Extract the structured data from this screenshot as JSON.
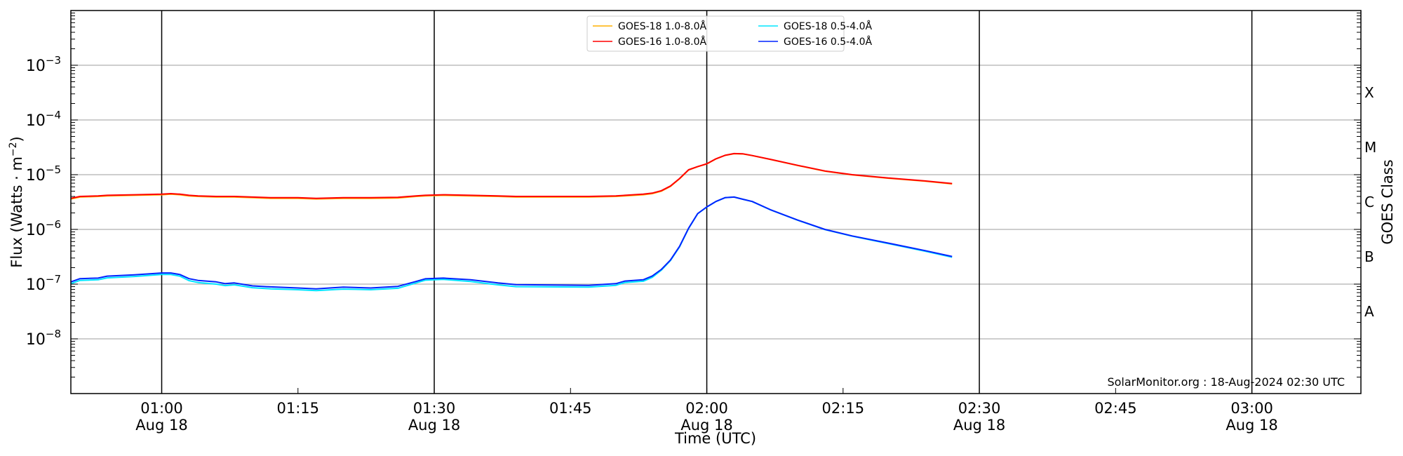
{
  "chart_data": {
    "type": "line",
    "title": "",
    "xlabel": "Time (UTC)",
    "ylabel": "Flux (Watts · m⁻²)",
    "y2label": "GOES Class",
    "yscale": "log",
    "ylim": [
      1e-09,
      0.01
    ],
    "xlim": [
      "00:50",
      "03:12"
    ],
    "grid": true,
    "legend_position": "top-center",
    "x_ticks": [
      {
        "time": "01:00",
        "label": "01:00",
        "sub": "Aug 18",
        "major": true
      },
      {
        "time": "01:15",
        "label": "01:15",
        "sub": "",
        "major": false
      },
      {
        "time": "01:30",
        "label": "01:30",
        "sub": "Aug 18",
        "major": true
      },
      {
        "time": "01:45",
        "label": "01:45",
        "sub": "",
        "major": false
      },
      {
        "time": "02:00",
        "label": "02:00",
        "sub": "Aug 18",
        "major": true
      },
      {
        "time": "02:15",
        "label": "02:15",
        "sub": "",
        "major": false
      },
      {
        "time": "02:30",
        "label": "02:30",
        "sub": "Aug 18",
        "major": true
      },
      {
        "time": "02:45",
        "label": "02:45",
        "sub": "",
        "major": false
      },
      {
        "time": "03:00",
        "label": "03:00",
        "sub": "Aug 18",
        "major": true
      }
    ],
    "y_ticks": [
      {
        "exp": -3,
        "base": "10",
        "sup": "−3"
      },
      {
        "exp": -4,
        "base": "10",
        "sup": "−4"
      },
      {
        "exp": -5,
        "base": "10",
        "sup": "−5"
      },
      {
        "exp": -6,
        "base": "10",
        "sup": "−6"
      },
      {
        "exp": -7,
        "base": "10",
        "sup": "−7"
      },
      {
        "exp": -8,
        "base": "10",
        "sup": "−8"
      }
    ],
    "class_labels": [
      {
        "label": "X",
        "exp": -3.5
      },
      {
        "label": "M",
        "exp": -4.5
      },
      {
        "label": "C",
        "exp": -5.5
      },
      {
        "label": "B",
        "exp": -6.5
      },
      {
        "label": "A",
        "exp": -7.5
      }
    ],
    "x": [
      "00:50",
      "00:51",
      "00:53",
      "00:54",
      "00:57",
      "01:00",
      "01:01",
      "01:02",
      "01:03",
      "01:04",
      "01:06",
      "01:07",
      "01:08",
      "01:10",
      "01:12",
      "01:15",
      "01:17",
      "01:20",
      "01:23",
      "01:26",
      "01:28",
      "01:29",
      "01:31",
      "01:34",
      "01:37",
      "01:39",
      "01:47",
      "01:50",
      "01:51",
      "01:53",
      "01:54",
      "01:55",
      "01:56",
      "01:57",
      "01:58",
      "01:59",
      "02:00",
      "02:01",
      "02:02",
      "02:03",
      "02:04",
      "02:05",
      "02:07",
      "02:10",
      "02:13",
      "02:16",
      "02:20",
      "02:24",
      "02:27"
    ],
    "series": [
      {
        "name": "GOES-18 1.0-8.0Å",
        "color": "#ffb000",
        "values": [
          3.6e-06,
          3.9e-06,
          4e-06,
          4.1e-06,
          4.2e-06,
          4.3e-06,
          4.4e-06,
          4.3e-06,
          4.1e-06,
          4e-06,
          3.9e-06,
          3.9e-06,
          3.9e-06,
          3.8e-06,
          3.7e-06,
          3.7e-06,
          3.6e-06,
          3.7e-06,
          3.7e-06,
          3.75e-06,
          4e-06,
          4.1e-06,
          4.2e-06,
          4.1e-06,
          4e-06,
          3.9e-06,
          3.9e-06,
          4e-06,
          4.1e-06,
          4.3e-06,
          4.5e-06,
          5e-06,
          6.1e-06,
          8.4e-06,
          1.22e-05,
          1.4e-05,
          1.57e-05,
          1.94e-05,
          2.25e-05,
          2.42e-05,
          2.39e-05,
          2.23e-05,
          1.9e-05,
          1.47e-05,
          1.16e-05,
          9.9e-06,
          8.6e-06,
          7.6e-06,
          6.8e-06
        ]
      },
      {
        "name": "GOES-16 1.0-8.0Å",
        "color": "#ff0000",
        "values": [
          3.7e-06,
          4e-06,
          4.1e-06,
          4.2e-06,
          4.3e-06,
          4.4e-06,
          4.5e-06,
          4.4e-06,
          4.2e-06,
          4.1e-06,
          4e-06,
          4e-06,
          4e-06,
          3.9e-06,
          3.8e-06,
          3.8e-06,
          3.7e-06,
          3.8e-06,
          3.8e-06,
          3.85e-06,
          4.1e-06,
          4.2e-06,
          4.3e-06,
          4.2e-06,
          4.1e-06,
          4e-06,
          4e-06,
          4.1e-06,
          4.2e-06,
          4.4e-06,
          4.6e-06,
          5.1e-06,
          6.2e-06,
          8.5e-06,
          1.23e-05,
          1.41e-05,
          1.58e-05,
          1.95e-05,
          2.26e-05,
          2.43e-05,
          2.4e-05,
          2.24e-05,
          1.91e-05,
          1.48e-05,
          1.17e-05,
          1e-05,
          8.7e-06,
          7.7e-06,
          6.9e-06
        ]
      },
      {
        "name": "GOES-18 0.5-4.0Å",
        "color": "#00e5ff",
        "values": [
          1.02e-07,
          1.17e-07,
          1.2e-07,
          1.3e-07,
          1.38e-07,
          1.5e-07,
          1.5e-07,
          1.4e-07,
          1.16e-07,
          1.07e-07,
          1e-07,
          9.4e-08,
          9.7e-08,
          8.6e-08,
          8.2e-08,
          7.9e-08,
          7.6e-08,
          8.1e-08,
          7.9e-08,
          8.4e-08,
          1.05e-07,
          1.18e-07,
          1.22e-07,
          1.12e-07,
          9.7e-08,
          9e-08,
          8.8e-08,
          9.5e-08,
          1.07e-07,
          1.13e-07,
          1.33e-07,
          1.8e-07,
          2.7e-07,
          4.8e-07,
          1.04e-06,
          1.94e-06,
          2.56e-06,
          3.23e-06,
          3.8e-06,
          3.9e-06,
          3.55e-06,
          3.23e-06,
          2.28e-06,
          1.47e-06,
          9.9e-07,
          7.5e-07,
          5.5e-07,
          4e-07,
          3.1e-07
        ]
      },
      {
        "name": "GOES-16 0.5-4.0Å",
        "color": "#0022ff",
        "values": [
          1.1e-07,
          1.26e-07,
          1.29e-07,
          1.4e-07,
          1.48e-07,
          1.6e-07,
          1.6e-07,
          1.5e-07,
          1.26e-07,
          1.17e-07,
          1.1e-07,
          1.02e-07,
          1.05e-07,
          9.3e-08,
          8.9e-08,
          8.5e-08,
          8.2e-08,
          8.8e-08,
          8.5e-08,
          9.1e-08,
          1.12e-07,
          1.25e-07,
          1.29e-07,
          1.2e-07,
          1.05e-07,
          9.8e-08,
          9.5e-08,
          1.02e-07,
          1.14e-07,
          1.2e-07,
          1.41e-07,
          1.86e-07,
          2.75e-07,
          4.9e-07,
          1.05e-06,
          1.95e-06,
          2.57e-06,
          3.24e-06,
          3.8e-06,
          3.9e-06,
          3.55e-06,
          3.24e-06,
          2.29e-06,
          1.48e-06,
          1e-06,
          7.6e-07,
          5.6e-07,
          4.1e-07,
          3.2e-07
        ]
      }
    ],
    "annotation": "SolarMonitor.org : 18-Aug-2024 02:30 UTC"
  }
}
